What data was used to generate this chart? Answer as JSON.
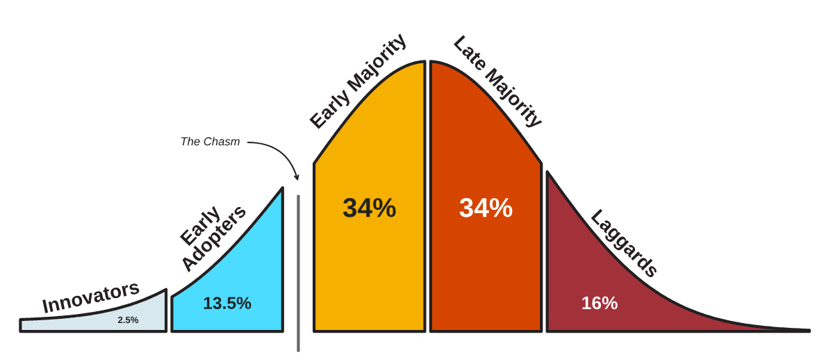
{
  "chart_data": {
    "type": "other",
    "categories": [
      "Innovators",
      "Early Adopters",
      "Early Majority",
      "Late Majority",
      "Laggards"
    ],
    "values": [
      2.5,
      13.5,
      34,
      34,
      16
    ],
    "value_labels": [
      "2.5%",
      "13.5%",
      "34%",
      "34%",
      "16%"
    ],
    "colors": [
      "#d8e8ef",
      "#4cdcff",
      "#f5b000",
      "#d64500",
      "#a3313a"
    ],
    "annotations": [
      "The Chasm"
    ]
  }
}
